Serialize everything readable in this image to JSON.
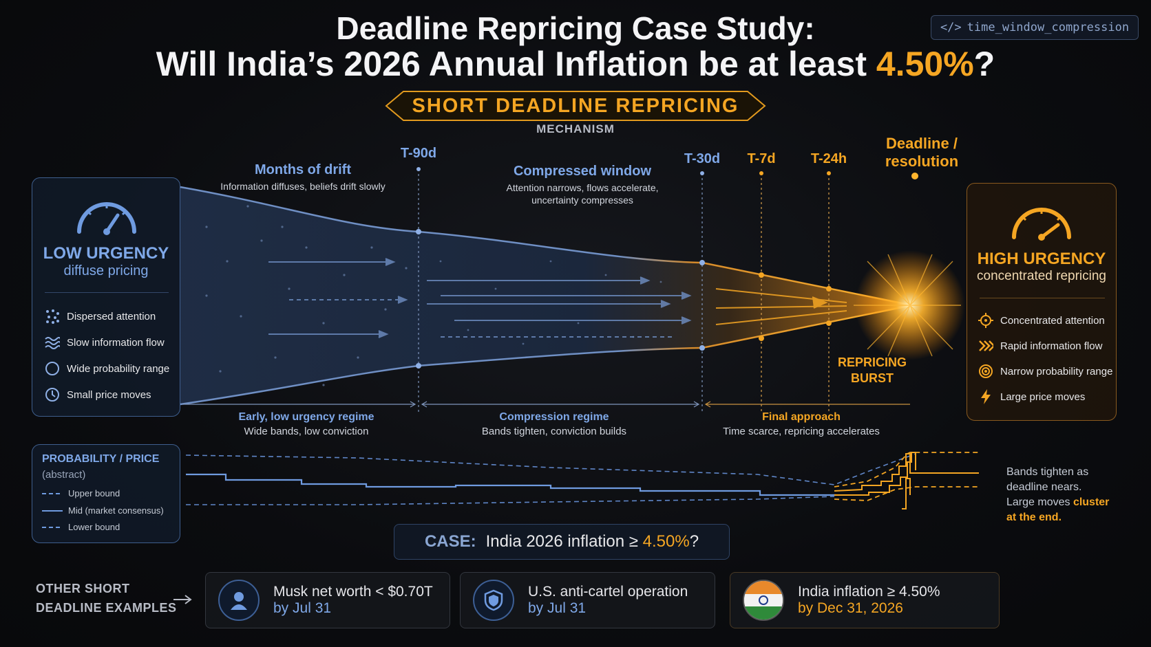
{
  "header": {
    "title_line1": "Deadline Repricing Case Study:",
    "title_line2_prefix": "Will India’s 2026 Annual Inflation be at least ",
    "title_line2_highlight": "4.50%",
    "title_line2_suffix": "?",
    "code_tag_icon": "code-brackets-icon",
    "code_tag_prefix": "</>",
    "code_tag": "time_window_compression",
    "badge": "SHORT DEADLINE REPRICING",
    "badge_sub": "MECHANISM"
  },
  "left_panel": {
    "gauge_icon": "gauge-low-icon",
    "title": "LOW URGENCY",
    "subtitle": "diffuse pricing",
    "features": [
      {
        "icon": "scatter-dots-icon",
        "label": "Dispersed attention"
      },
      {
        "icon": "waves-icon",
        "label": "Slow information flow"
      },
      {
        "icon": "circle-icon",
        "label": "Wide probability range"
      },
      {
        "icon": "clock-icon",
        "label": "Small price moves"
      }
    ]
  },
  "right_panel": {
    "gauge_icon": "gauge-high-icon",
    "title": "HIGH URGENCY",
    "subtitle": "concentrated repricing",
    "features": [
      {
        "icon": "crosshair-icon",
        "label": "Concentrated attention"
      },
      {
        "icon": "chevrons-right-icon",
        "label": "Rapid information flow"
      },
      {
        "icon": "target-icon",
        "label": "Narrow probability range"
      },
      {
        "icon": "lightning-icon",
        "label": "Large price moves"
      }
    ]
  },
  "timeline": {
    "phases": [
      {
        "title": "Months of drift",
        "desc": "Information diffuses, beliefs drift slowly"
      },
      {
        "title": "Compressed window",
        "desc_line1": "Attention narrows, flows accelerate,",
        "desc_line2": "uncertainty compresses"
      }
    ],
    "ticks": [
      "T-90d",
      "T-30d",
      "T-7d",
      "T-24h"
    ],
    "deadline_line1": "Deadline /",
    "deadline_line2": "resolution",
    "burst_line1": "REPRICING",
    "burst_line2": "BURST",
    "regimes": [
      {
        "title": "Early, low urgency regime",
        "desc": "Wide bands, low conviction"
      },
      {
        "title": "Compression regime",
        "desc": "Bands tighten, conviction builds"
      },
      {
        "title": "Final approach",
        "desc": "Time scarce, repricing accelerates"
      }
    ]
  },
  "probability_panel": {
    "title": "PROBABILITY / PRICE",
    "subtitle": "(abstract)",
    "legend": [
      "Upper bound",
      "Mid (market consensus)",
      "Lower bound"
    ],
    "note_line1": "Bands tighten as",
    "note_line2": "deadline nears.",
    "note_line3_prefix": "Large moves ",
    "note_line3_highlight": "cluster",
    "note_line4_highlight": "at the end."
  },
  "case": {
    "label": "CASE:",
    "text_prefix": "India 2026 inflation ≥ ",
    "text_highlight": "4.50%",
    "text_suffix": "?"
  },
  "examples": {
    "heading_line1": "OTHER SHORT",
    "heading_line2": "DEADLINE EXAMPLES",
    "arrow_icon": "arrow-right-icon",
    "items": [
      {
        "icon": "person-icon",
        "line1": "Musk net worth < $0.70T",
        "line2": "by Jul 31"
      },
      {
        "icon": "shield-icon",
        "line1": "U.S. anti-cartel operation",
        "line2": "by Jul 31"
      },
      {
        "icon": "india-flag-icon",
        "line1": "India inflation ≥ 4.50%",
        "line2": "by Dec 31, 2026"
      }
    ]
  },
  "colors": {
    "blue": "#6f9be0",
    "orange": "#f5a623",
    "deadline": "#ffb52e"
  }
}
